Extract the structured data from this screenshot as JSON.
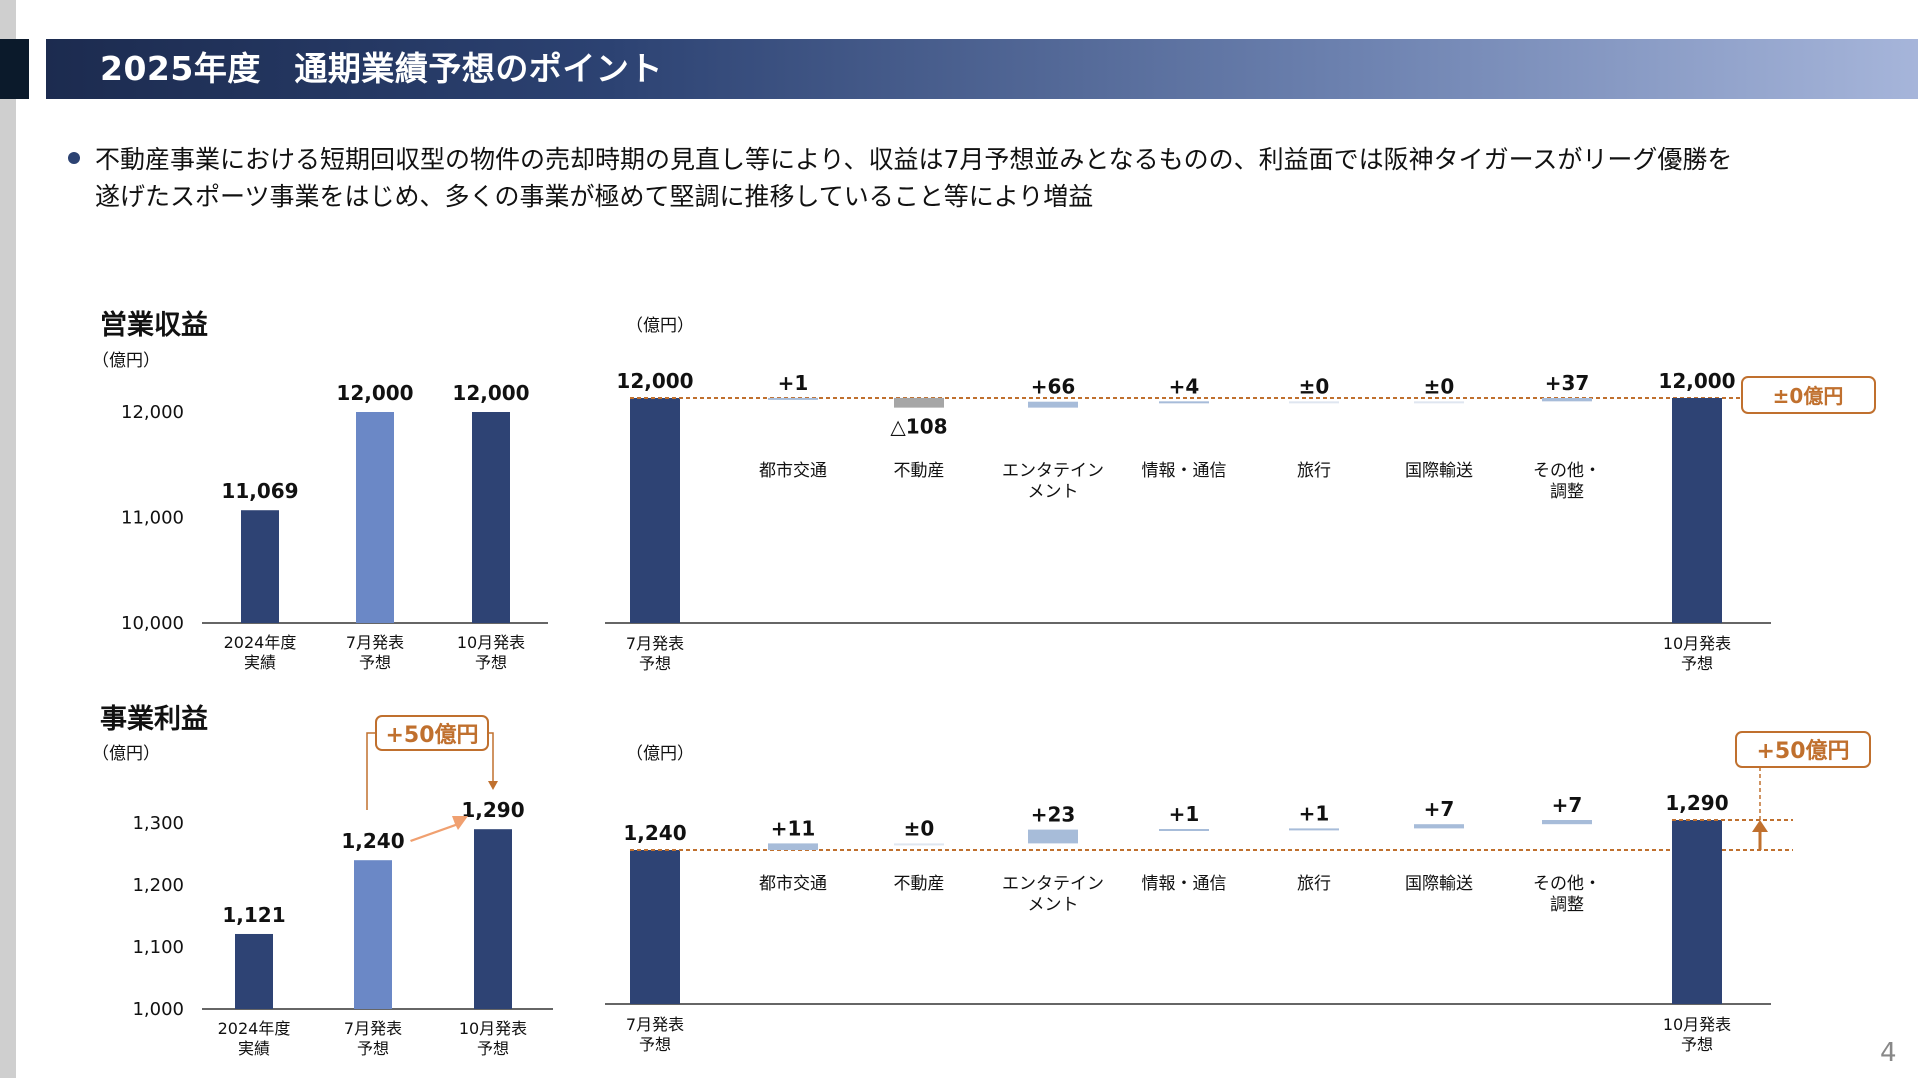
{
  "header": {
    "title": "2025年度　通期業績予想のポイント"
  },
  "summary": {
    "line1": "不動産事業における短期回収型の物件の売却時期の見直し等により、収益は7月予想並みとなるものの、利益面では阪神タイガースがリーグ優勝を",
    "line2": "遂げたスポーツ事業をはじめ、多くの事業が極めて堅調に推移していること等により増益"
  },
  "revenue": {
    "title": "営業収益",
    "unit": "（億円）",
    "chart_data": {
      "type": "bar",
      "categories": [
        [
          "2024年度",
          "実績"
        ],
        [
          "7月発表",
          "予想"
        ],
        [
          "10月発表",
          "予想"
        ]
      ],
      "values": [
        11069,
        12000,
        12000
      ],
      "value_labels": [
        "11,069",
        "12,000",
        "12,000"
      ],
      "yticks": [
        10000,
        11000,
        12000
      ],
      "ytick_labels": [
        "10,000",
        "11,000",
        "12,000"
      ],
      "ylim": [
        10000,
        12000
      ]
    },
    "waterfall": {
      "unit": "（億円）",
      "type": "waterfall",
      "start": {
        "value": 12000,
        "label": "12,000",
        "category": [
          "7月発表",
          "予想"
        ]
      },
      "end": {
        "value": 12000,
        "label": "12,000",
        "category": [
          "10月発表",
          "予想"
        ]
      },
      "items": [
        {
          "category": [
            "都市交通"
          ],
          "delta": 1,
          "label": "+1"
        },
        {
          "category": [
            "不動産"
          ],
          "delta": -108,
          "label": "△108"
        },
        {
          "category": [
            "エンタテイン",
            "メント"
          ],
          "delta": 66,
          "label": "+66"
        },
        {
          "category": [
            "情報・通信"
          ],
          "delta": 4,
          "label": "+4"
        },
        {
          "category": [
            "旅行"
          ],
          "delta": 0,
          "label": "±0"
        },
        {
          "category": [
            "国際輸送"
          ],
          "delta": 0,
          "label": "±0"
        },
        {
          "category": [
            "その他・",
            "調整"
          ],
          "delta": 37,
          "label": "+37"
        }
      ],
      "badge": "±0億円"
    }
  },
  "profit": {
    "title": "事業利益",
    "unit": "（億円）",
    "badge": "+50億円",
    "chart_data": {
      "type": "bar",
      "categories": [
        [
          "2024年度",
          "実績"
        ],
        [
          "7月発表",
          "予想"
        ],
        [
          "10月発表",
          "予想"
        ]
      ],
      "values": [
        1121,
        1240,
        1290
      ],
      "value_labels": [
        "1,121",
        "1,240",
        "1,290"
      ],
      "yticks": [
        1000,
        1100,
        1200,
        1300
      ],
      "ytick_labels": [
        "1,000",
        "1,100",
        "1,200",
        "1,300"
      ],
      "ylim": [
        1000,
        1300
      ]
    },
    "waterfall": {
      "unit": "（億円）",
      "type": "waterfall",
      "start": {
        "value": 1240,
        "label": "1,240",
        "category": [
          "7月発表",
          "予想"
        ]
      },
      "end": {
        "value": 1290,
        "label": "1,290",
        "category": [
          "10月発表",
          "予想"
        ]
      },
      "items": [
        {
          "category": [
            "都市交通"
          ],
          "delta": 11,
          "label": "+11"
        },
        {
          "category": [
            "不動産"
          ],
          "delta": 0,
          "label": "±0"
        },
        {
          "category": [
            "エンタテイン",
            "メント"
          ],
          "delta": 23,
          "label": "+23"
        },
        {
          "category": [
            "情報・通信"
          ],
          "delta": 1,
          "label": "+1"
        },
        {
          "category": [
            "旅行"
          ],
          "delta": 1,
          "label": "+1"
        },
        {
          "category": [
            "国際輸送"
          ],
          "delta": 7,
          "label": "+7"
        },
        {
          "category": [
            "その他・",
            "調整"
          ],
          "delta": 7,
          "label": "+7"
        }
      ],
      "badge": "+50億円"
    }
  },
  "colors": {
    "navy": "#2e4374",
    "light_bar": "#6b88c6",
    "delta_bar": "#a7bcd9",
    "negative_bar": "#a6a6a6",
    "accent": "#c0702e"
  },
  "page_number": "4"
}
